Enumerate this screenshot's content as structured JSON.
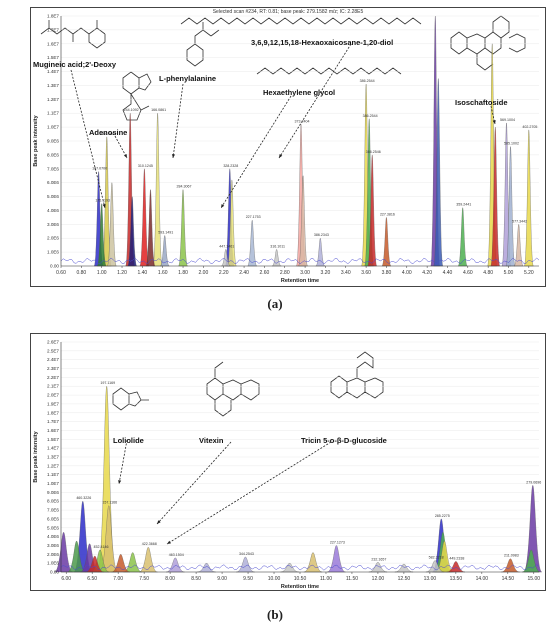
{
  "panels": [
    {
      "letter": "(a)",
      "header": "Selected scan #234, RT: 0.81; base peak: 279.1582 m/z; IC: 2.28E5",
      "chart_data": {
        "type": "area",
        "title": "",
        "xlabel": "Retention time",
        "ylabel": "Base peak intensity",
        "xlim": [
          0.6,
          5.3
        ],
        "ylim": [
          0,
          18000000
        ],
        "x_ticks": [
          "0.60",
          "0.80",
          "1.00",
          "1.20",
          "1.40",
          "1.60",
          "1.80",
          "2.00",
          "2.20",
          "2.40",
          "2.60",
          "2.80",
          "3.00",
          "3.20",
          "3.40",
          "3.60",
          "3.80",
          "4.00",
          "4.20",
          "4.40",
          "4.60",
          "4.80",
          "5.00",
          "5.20"
        ],
        "y_ticks": [
          "0.00",
          "1.0E6",
          "2.0E6",
          "3.0E6",
          "4.0E6",
          "5.0E6",
          "6.0E6",
          "7.0E6",
          "8.0E6",
          "9.0E6",
          "1.0E7",
          "1.1E7",
          "1.2E7",
          "1.3E7",
          "1.4E7",
          "1.5E7",
          "1.6E7",
          "1.7E7",
          "1.8E7"
        ],
        "peaks": [
          {
            "x": 0.97,
            "y": 6800000,
            "color": "#2d2dc8",
            "label": "187.0700"
          },
          {
            "x": 1.0,
            "y": 4500000,
            "color": "#2e7d32",
            "label": "175.1193"
          },
          {
            "x": 1.05,
            "y": 9300000,
            "color": "#d7c94a",
            "label": "1060.1067"
          },
          {
            "x": 1.1,
            "y": 6000000,
            "color": "#ccc3a0",
            "label": ""
          },
          {
            "x": 1.28,
            "y": 11000000,
            "color": "#c62828",
            "label": "244.1092"
          },
          {
            "x": 1.3,
            "y": 5000000,
            "color": "#1f1f7a",
            "label": ""
          },
          {
            "x": 1.42,
            "y": 7000000,
            "color": "#e02020",
            "label": "310.1245"
          },
          {
            "x": 1.48,
            "y": 5500000,
            "color": "#7a2a2a",
            "label": ""
          },
          {
            "x": 1.55,
            "y": 11000000,
            "color": "#e8e27a",
            "label": "166.0861"
          },
          {
            "x": 1.62,
            "y": 2200000,
            "color": "#9aa8c4",
            "label": "593.1491"
          },
          {
            "x": 1.8,
            "y": 5500000,
            "color": "#8bc34a",
            "label": "284.3067"
          },
          {
            "x": 2.22,
            "y": 1200000,
            "color": "#c6c6c6",
            "label": "447.3461"
          },
          {
            "x": 2.26,
            "y": 7000000,
            "color": "#2d2dc8",
            "label": "328.2328"
          },
          {
            "x": 2.28,
            "y": 6200000,
            "color": "#e8e27a",
            "label": ""
          },
          {
            "x": 2.48,
            "y": 3300000,
            "color": "#a8b7d4",
            "label": "227.1753"
          },
          {
            "x": 2.72,
            "y": 1200000,
            "color": "#c6c6c6",
            "label": "316.1011"
          },
          {
            "x": 2.96,
            "y": 10200000,
            "color": "#f4a6a0",
            "label": "373.2404"
          },
          {
            "x": 2.98,
            "y": 6500000,
            "color": "#d9b7a3",
            "label": ""
          },
          {
            "x": 3.15,
            "y": 2000000,
            "color": "#b0b0d8",
            "label": "386.2343"
          },
          {
            "x": 3.6,
            "y": 13100000,
            "color": "#e8d84a",
            "label": "386.2544"
          },
          {
            "x": 3.63,
            "y": 10600000,
            "color": "#4caf50",
            "label": "386.2544"
          },
          {
            "x": 3.66,
            "y": 8000000,
            "color": "#c62828",
            "label": "366.2546"
          },
          {
            "x": 3.8,
            "y": 3500000,
            "color": "#c65a2a",
            "label": "227.3816"
          },
          {
            "x": 4.28,
            "y": 18000000,
            "color": "#6a3aa3",
            "label": ""
          },
          {
            "x": 4.31,
            "y": 13500000,
            "color": "#3a5ab3",
            "label": ""
          },
          {
            "x": 4.55,
            "y": 4200000,
            "color": "#4caf50",
            "label": "359.2441"
          },
          {
            "x": 4.84,
            "y": 16000000,
            "color": "#e8d84a",
            "label": ""
          },
          {
            "x": 4.87,
            "y": 10000000,
            "color": "#c62828",
            "label": ""
          },
          {
            "x": 4.98,
            "y": 10300000,
            "color": "#b0a0d8",
            "label": "569.1004"
          },
          {
            "x": 5.02,
            "y": 8600000,
            "color": "#a0b0d0",
            "label": "585.1002"
          },
          {
            "x": 5.1,
            "y": 3000000,
            "color": "#d8b7a3",
            "label": "577.3442"
          },
          {
            "x": 5.2,
            "y": 9800000,
            "color": "#e8d84a",
            "label": "402.2705"
          }
        ],
        "annotations": [
          "Mugineic acid;2'-Deoxy",
          "Adenosine",
          "L-phenylalanine",
          "3,6,9,12,15,18-Hexaoxaicosane-1,20-diol",
          "Hexaethylene glycol",
          "Isoschaftoside"
        ]
      }
    },
    {
      "letter": "(b)",
      "header": "",
      "chart_data": {
        "type": "area",
        "title": "",
        "xlabel": "Retention time",
        "ylabel": "Base peak intensity",
        "xlim": [
          5.9,
          15.1
        ],
        "ylim": [
          0,
          26000000
        ],
        "x_ticks": [
          "6.00",
          "6.50",
          "7.00",
          "7.50",
          "8.00",
          "8.50",
          "9.00",
          "9.50",
          "10.00",
          "10.50",
          "11.00",
          "11.50",
          "12.00",
          "12.50",
          "13.00",
          "13.50",
          "14.00",
          "14.50",
          "15.00"
        ],
        "y_ticks": [
          "0.00",
          "1.0E6",
          "2.0E6",
          "3.0E6",
          "4.0E6",
          "5.0E6",
          "6.0E6",
          "7.0E6",
          "8.0E6",
          "9.0E6",
          "1.0E7",
          "1.1E7",
          "1.2E7",
          "1.3E7",
          "1.4E7",
          "1.5E7",
          "1.6E7",
          "1.7E7",
          "1.8E7",
          "1.9E7",
          "2.0E7",
          "2.1E7",
          "2.2E7",
          "2.3E7",
          "2.4E7",
          "2.5E7",
          "2.6E7"
        ],
        "peaks": [
          {
            "x": 5.95,
            "y": 4500000,
            "color": "#6a3aa3",
            "label": ""
          },
          {
            "x": 6.2,
            "y": 3500000,
            "color": "#4c9a4c",
            "label": ""
          },
          {
            "x": 6.32,
            "y": 8000000,
            "color": "#2d2dc8",
            "label": "460.3226"
          },
          {
            "x": 6.45,
            "y": 3200000,
            "color": "#6a3aa3",
            "label": ""
          },
          {
            "x": 6.55,
            "y": 1800000,
            "color": "#c62828",
            "label": ""
          },
          {
            "x": 6.65,
            "y": 2500000,
            "color": "#8bc34a",
            "label": "452.4146"
          },
          {
            "x": 6.78,
            "y": 21000000,
            "color": "#e8d84a",
            "label": "197.1169"
          },
          {
            "x": 6.82,
            "y": 7500000,
            "color": "#d8c070",
            "label": "157.1166"
          },
          {
            "x": 7.05,
            "y": 2000000,
            "color": "#c65a2a",
            "label": ""
          },
          {
            "x": 7.28,
            "y": 2200000,
            "color": "#8bc34a",
            "label": ""
          },
          {
            "x": 7.58,
            "y": 2800000,
            "color": "#d8c070",
            "label": "422.3668"
          },
          {
            "x": 8.1,
            "y": 1600000,
            "color": "#b0a0d8",
            "label": "463.1504"
          },
          {
            "x": 8.7,
            "y": 1000000,
            "color": "#b0b0d8",
            "label": ""
          },
          {
            "x": 9.45,
            "y": 1700000,
            "color": "#b0b0d8",
            "label": "344.2543"
          },
          {
            "x": 10.3,
            "y": 1000000,
            "color": "#c6c6c6",
            "label": ""
          },
          {
            "x": 10.75,
            "y": 2200000,
            "color": "#d8c070",
            "label": ""
          },
          {
            "x": 11.2,
            "y": 3000000,
            "color": "#9a7ad8",
            "label": "227.1273"
          },
          {
            "x": 12.0,
            "y": 1100000,
            "color": "#c6c6c6",
            "label": "232.1657"
          },
          {
            "x": 12.5,
            "y": 900000,
            "color": "#c6c6c6",
            "label": ""
          },
          {
            "x": 13.22,
            "y": 6000000,
            "color": "#2d2dc8",
            "label": "285.2275"
          },
          {
            "x": 13.25,
            "y": 4500000,
            "color": "#4caf50",
            "label": ""
          },
          {
            "x": 13.28,
            "y": 3500000,
            "color": "#e8d84a",
            "label": ""
          },
          {
            "x": 13.1,
            "y": 1300000,
            "color": "#c6c6c6",
            "label": "582.3218"
          },
          {
            "x": 13.5,
            "y": 1200000,
            "color": "#c62828",
            "label": "449.2338"
          },
          {
            "x": 14.55,
            "y": 1500000,
            "color": "#c65a2a",
            "label": "211.0983"
          },
          {
            "x": 14.98,
            "y": 9800000,
            "color": "#6a3aa3",
            "label": "279.0696"
          },
          {
            "x": 14.95,
            "y": 2500000,
            "color": "#4caf50",
            "label": ""
          }
        ],
        "annotations": [
          "Loliolide",
          "Vitexin",
          "Tricin 5-o-β-D-glucoside"
        ]
      }
    }
  ]
}
